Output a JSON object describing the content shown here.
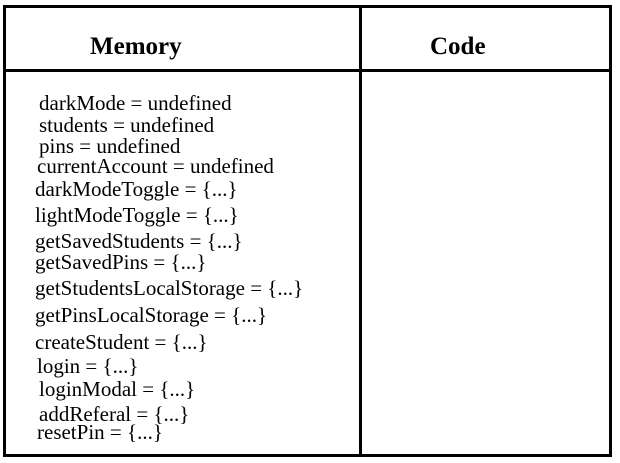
{
  "columns": {
    "memory_title": "Memory",
    "code_title": "Code"
  },
  "memory": [
    "darkMode = undefined",
    "students = undefined",
    "pins = undefined",
    "currentAccount = undefined",
    "darkModeToggle = {...}",
    "lightModeToggle = {...}",
    "getSavedStudents = {...}",
    "getSavedPins = {...}",
    "getStudentsLocalStorage = {...}",
    "getPinsLocalStorage = {...}",
    "createStudent = {...}",
    "login = {...}",
    "loginModal = {...}",
    "addReferal = {...}",
    "resetPin = {...}"
  ],
  "code": []
}
